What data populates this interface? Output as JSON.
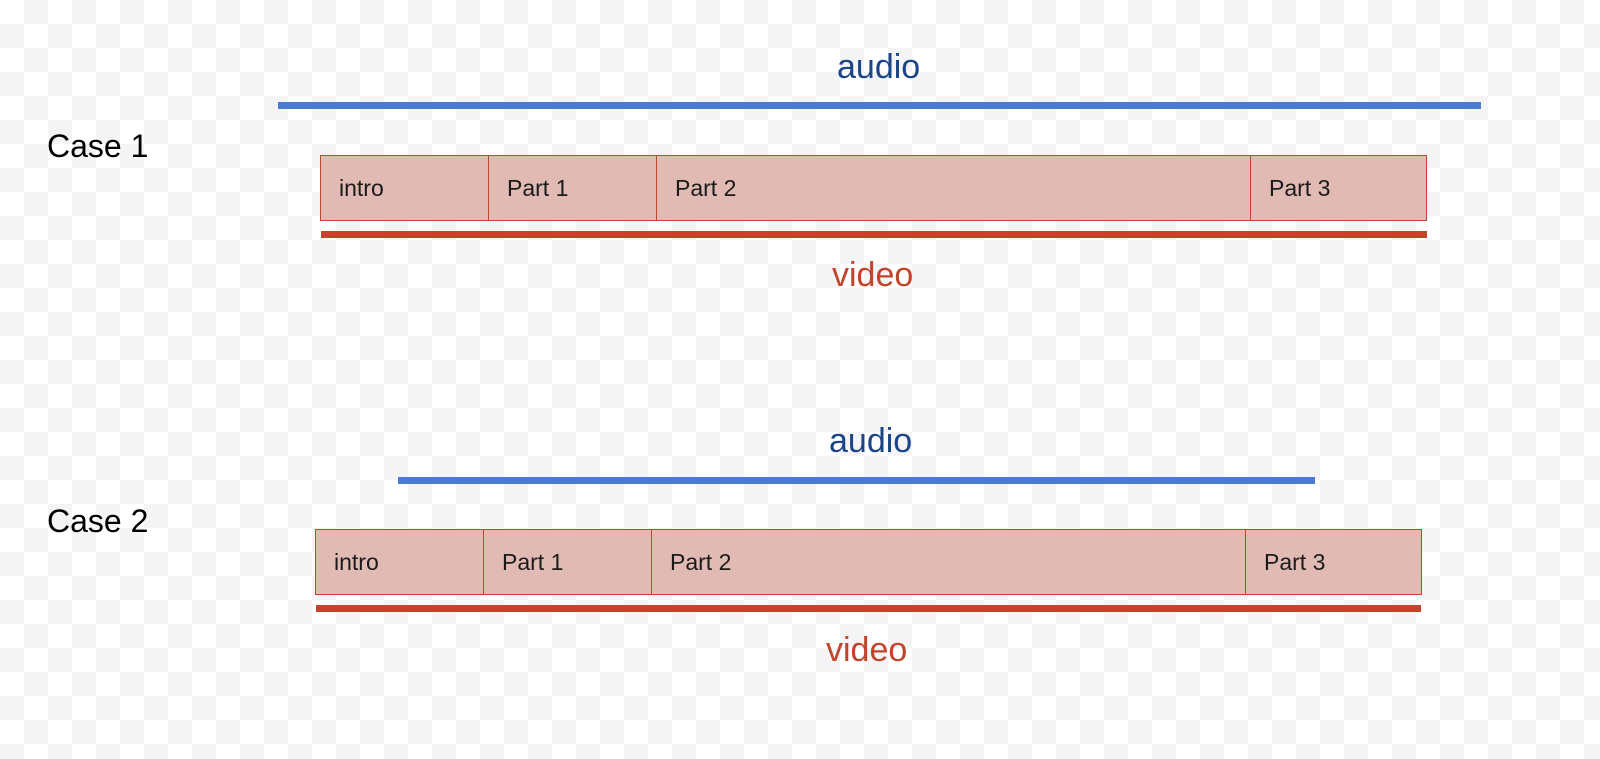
{
  "cases": [
    {
      "label": "Case 1",
      "audio_label": "audio",
      "video_label": "video",
      "segments": [
        "intro",
        "Part 1",
        "Part 2",
        "Part 3"
      ]
    },
    {
      "label": "Case 2",
      "audio_label": "audio",
      "video_label": "video",
      "segments": [
        "intro",
        "Part 1",
        "Part 2",
        "Part 3"
      ]
    }
  ],
  "colors": {
    "audio": "#4a7bd0",
    "audio_text": "#1c4587",
    "video": "#c1442b",
    "segment_fill": "#e0bab3"
  }
}
